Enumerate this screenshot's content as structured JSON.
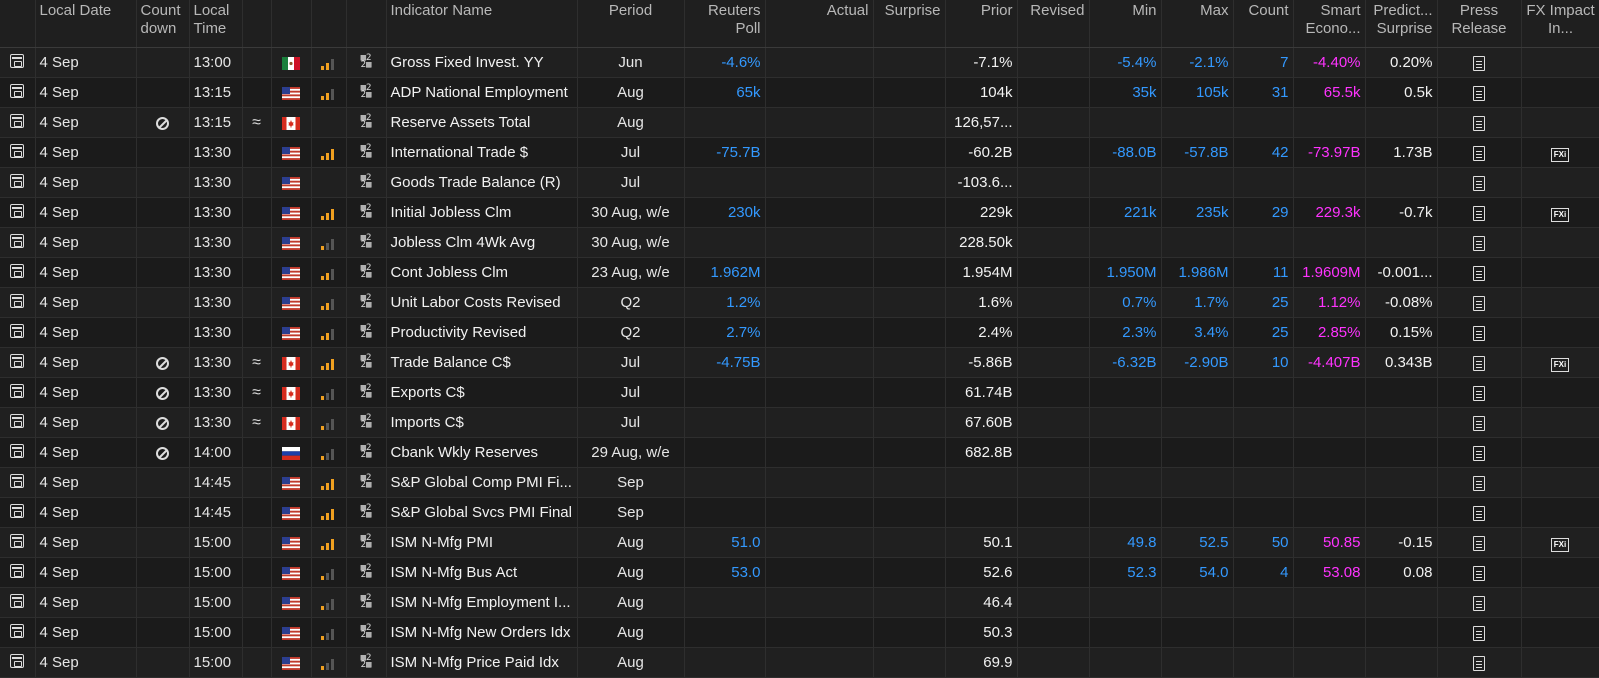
{
  "headers": {
    "local_date": "Local Date",
    "countdown": "Count down",
    "local_time": "Local Time",
    "indicator_name": "Indicator Name",
    "period": "Period",
    "reuters_poll": "Reuters Poll",
    "actual": "Actual",
    "surprise": "Surprise",
    "prior": "Prior",
    "revised": "Revised",
    "min": "Min",
    "max": "Max",
    "count": "Count",
    "smart_econ": "Smart Econo...",
    "predict_surprise": "Predict... Surprise",
    "press_release": "Press Release",
    "fx_impact": "FX Impact In..."
  },
  "icons": {
    "calendar": "calendar-icon",
    "countdown_blocked": "prohibited-icon",
    "approx": "≈",
    "category": "category-icon",
    "press_release": "document-icon",
    "fx_impact": "FXi"
  },
  "colors": {
    "poll": "#3399ff",
    "smart_econ": "#ff33ff",
    "importance": "#f0a020"
  },
  "rows": [
    {
      "date": "4 Sep",
      "countdown": false,
      "time": "13:00",
      "approx": false,
      "country": "MX",
      "importance": "med",
      "name": "Gross Fixed Invest. YY",
      "period": "Jun",
      "poll": "-4.6%",
      "actual": "",
      "surprise": "",
      "prior": "-7.1%",
      "revised": "",
      "min": "-5.4%",
      "max": "-2.1%",
      "count": "7",
      "smart": "-4.40%",
      "predict": "0.20%",
      "fx": false
    },
    {
      "date": "4 Sep",
      "countdown": false,
      "time": "13:15",
      "approx": false,
      "country": "US",
      "importance": "med",
      "name": "ADP National Employment",
      "period": "Aug",
      "poll": "65k",
      "actual": "",
      "surprise": "",
      "prior": "104k",
      "revised": "",
      "min": "35k",
      "max": "105k",
      "count": "31",
      "smart": "65.5k",
      "predict": "0.5k",
      "fx": false
    },
    {
      "date": "4 Sep",
      "countdown": true,
      "time": "13:15",
      "approx": true,
      "country": "CA",
      "importance": "none",
      "name": "Reserve Assets Total",
      "period": "Aug",
      "poll": "",
      "actual": "",
      "surprise": "",
      "prior": "126,57...",
      "revised": "",
      "min": "",
      "max": "",
      "count": "",
      "smart": "",
      "predict": "",
      "fx": false
    },
    {
      "date": "4 Sep",
      "countdown": false,
      "time": "13:30",
      "approx": false,
      "country": "US",
      "importance": "high",
      "name": "International Trade $",
      "period": "Jul",
      "poll": "-75.7B",
      "actual": "",
      "surprise": "",
      "prior": "-60.2B",
      "revised": "",
      "min": "-88.0B",
      "max": "-57.8B",
      "count": "42",
      "smart": "-73.97B",
      "predict": "1.73B",
      "fx": true
    },
    {
      "date": "4 Sep",
      "countdown": false,
      "time": "13:30",
      "approx": false,
      "country": "US",
      "importance": "none",
      "name": "Goods Trade Balance (R)",
      "period": "Jul",
      "poll": "",
      "actual": "",
      "surprise": "",
      "prior": "-103.6...",
      "revised": "",
      "min": "",
      "max": "",
      "count": "",
      "smart": "",
      "predict": "",
      "fx": false
    },
    {
      "date": "4 Sep",
      "countdown": false,
      "time": "13:30",
      "approx": false,
      "country": "US",
      "importance": "high",
      "name": "Initial Jobless Clm",
      "period": "30 Aug, w/e",
      "poll": "230k",
      "actual": "",
      "surprise": "",
      "prior": "229k",
      "revised": "",
      "min": "221k",
      "max": "235k",
      "count": "29",
      "smart": "229.3k",
      "predict": "-0.7k",
      "fx": true
    },
    {
      "date": "4 Sep",
      "countdown": false,
      "time": "13:30",
      "approx": false,
      "country": "US",
      "importance": "low",
      "name": "Jobless Clm 4Wk Avg",
      "period": "30 Aug, w/e",
      "poll": "",
      "actual": "",
      "surprise": "",
      "prior": "228.50k",
      "revised": "",
      "min": "",
      "max": "",
      "count": "",
      "smart": "",
      "predict": "",
      "fx": false
    },
    {
      "date": "4 Sep",
      "countdown": false,
      "time": "13:30",
      "approx": false,
      "country": "US",
      "importance": "med",
      "name": "Cont Jobless Clm",
      "period": "23 Aug, w/e",
      "poll": "1.962M",
      "actual": "",
      "surprise": "",
      "prior": "1.954M",
      "revised": "",
      "min": "1.950M",
      "max": "1.986M",
      "count": "11",
      "smart": "1.9609M",
      "predict": "-0.001...",
      "fx": false
    },
    {
      "date": "4 Sep",
      "countdown": false,
      "time": "13:30",
      "approx": false,
      "country": "US",
      "importance": "med",
      "name": "Unit Labor Costs Revised",
      "period": "Q2",
      "poll": "1.2%",
      "actual": "",
      "surprise": "",
      "prior": "1.6%",
      "revised": "",
      "min": "0.7%",
      "max": "1.7%",
      "count": "25",
      "smart": "1.12%",
      "predict": "-0.08%",
      "fx": false
    },
    {
      "date": "4 Sep",
      "countdown": false,
      "time": "13:30",
      "approx": false,
      "country": "US",
      "importance": "med",
      "name": "Productivity Revised",
      "period": "Q2",
      "poll": "2.7%",
      "actual": "",
      "surprise": "",
      "prior": "2.4%",
      "revised": "",
      "min": "2.3%",
      "max": "3.4%",
      "count": "25",
      "smart": "2.85%",
      "predict": "0.15%",
      "fx": false
    },
    {
      "date": "4 Sep",
      "countdown": true,
      "time": "13:30",
      "approx": true,
      "country": "CA",
      "importance": "high",
      "name": "Trade Balance C$",
      "period": "Jul",
      "poll": "-4.75B",
      "actual": "",
      "surprise": "",
      "prior": "-5.86B",
      "revised": "",
      "min": "-6.32B",
      "max": "-2.90B",
      "count": "10",
      "smart": "-4.407B",
      "predict": "0.343B",
      "fx": true
    },
    {
      "date": "4 Sep",
      "countdown": true,
      "time": "13:30",
      "approx": true,
      "country": "CA",
      "importance": "low",
      "name": "Exports C$",
      "period": "Jul",
      "poll": "",
      "actual": "",
      "surprise": "",
      "prior": "61.74B",
      "revised": "",
      "min": "",
      "max": "",
      "count": "",
      "smart": "",
      "predict": "",
      "fx": false
    },
    {
      "date": "4 Sep",
      "countdown": true,
      "time": "13:30",
      "approx": true,
      "country": "CA",
      "importance": "low",
      "name": "Imports C$",
      "period": "Jul",
      "poll": "",
      "actual": "",
      "surprise": "",
      "prior": "67.60B",
      "revised": "",
      "min": "",
      "max": "",
      "count": "",
      "smart": "",
      "predict": "",
      "fx": false
    },
    {
      "date": "4 Sep",
      "countdown": true,
      "time": "14:00",
      "approx": false,
      "country": "RU",
      "importance": "low",
      "name": "Cbank Wkly Reserves",
      "period": "29 Aug, w/e",
      "poll": "",
      "actual": "",
      "surprise": "",
      "prior": "682.8B",
      "revised": "",
      "min": "",
      "max": "",
      "count": "",
      "smart": "",
      "predict": "",
      "fx": false
    },
    {
      "date": "4 Sep",
      "countdown": false,
      "time": "14:45",
      "approx": false,
      "country": "US",
      "importance": "high",
      "name": "S&P Global Comp PMI Fi...",
      "period": "Sep",
      "poll": "",
      "actual": "",
      "surprise": "",
      "prior": "",
      "revised": "",
      "min": "",
      "max": "",
      "count": "",
      "smart": "",
      "predict": "",
      "fx": false
    },
    {
      "date": "4 Sep",
      "countdown": false,
      "time": "14:45",
      "approx": false,
      "country": "US",
      "importance": "high",
      "name": "S&P Global Svcs PMI Final",
      "period": "Sep",
      "poll": "",
      "actual": "",
      "surprise": "",
      "prior": "",
      "revised": "",
      "min": "",
      "max": "",
      "count": "",
      "smart": "",
      "predict": "",
      "fx": false
    },
    {
      "date": "4 Sep",
      "countdown": false,
      "time": "15:00",
      "approx": false,
      "country": "US",
      "importance": "high",
      "name": "ISM N-Mfg PMI",
      "period": "Aug",
      "poll": "51.0",
      "actual": "",
      "surprise": "",
      "prior": "50.1",
      "revised": "",
      "min": "49.8",
      "max": "52.5",
      "count": "50",
      "smart": "50.85",
      "predict": "-0.15",
      "fx": true
    },
    {
      "date": "4 Sep",
      "countdown": false,
      "time": "15:00",
      "approx": false,
      "country": "US",
      "importance": "low",
      "name": "ISM N-Mfg Bus Act",
      "period": "Aug",
      "poll": "53.0",
      "actual": "",
      "surprise": "",
      "prior": "52.6",
      "revised": "",
      "min": "52.3",
      "max": "54.0",
      "count": "4",
      "smart": "53.08",
      "predict": "0.08",
      "fx": false
    },
    {
      "date": "4 Sep",
      "countdown": false,
      "time": "15:00",
      "approx": false,
      "country": "US",
      "importance": "low",
      "name": "ISM N-Mfg Employment I...",
      "period": "Aug",
      "poll": "",
      "actual": "",
      "surprise": "",
      "prior": "46.4",
      "revised": "",
      "min": "",
      "max": "",
      "count": "",
      "smart": "",
      "predict": "",
      "fx": false
    },
    {
      "date": "4 Sep",
      "countdown": false,
      "time": "15:00",
      "approx": false,
      "country": "US",
      "importance": "low",
      "name": "ISM N-Mfg New Orders Idx",
      "period": "Aug",
      "poll": "",
      "actual": "",
      "surprise": "",
      "prior": "50.3",
      "revised": "",
      "min": "",
      "max": "",
      "count": "",
      "smart": "",
      "predict": "",
      "fx": false
    },
    {
      "date": "4 Sep",
      "countdown": false,
      "time": "15:00",
      "approx": false,
      "country": "US",
      "importance": "low",
      "name": "ISM N-Mfg Price Paid Idx",
      "period": "Aug",
      "poll": "",
      "actual": "",
      "surprise": "",
      "prior": "69.9",
      "revised": "",
      "min": "",
      "max": "",
      "count": "",
      "smart": "",
      "predict": "",
      "fx": false
    }
  ]
}
